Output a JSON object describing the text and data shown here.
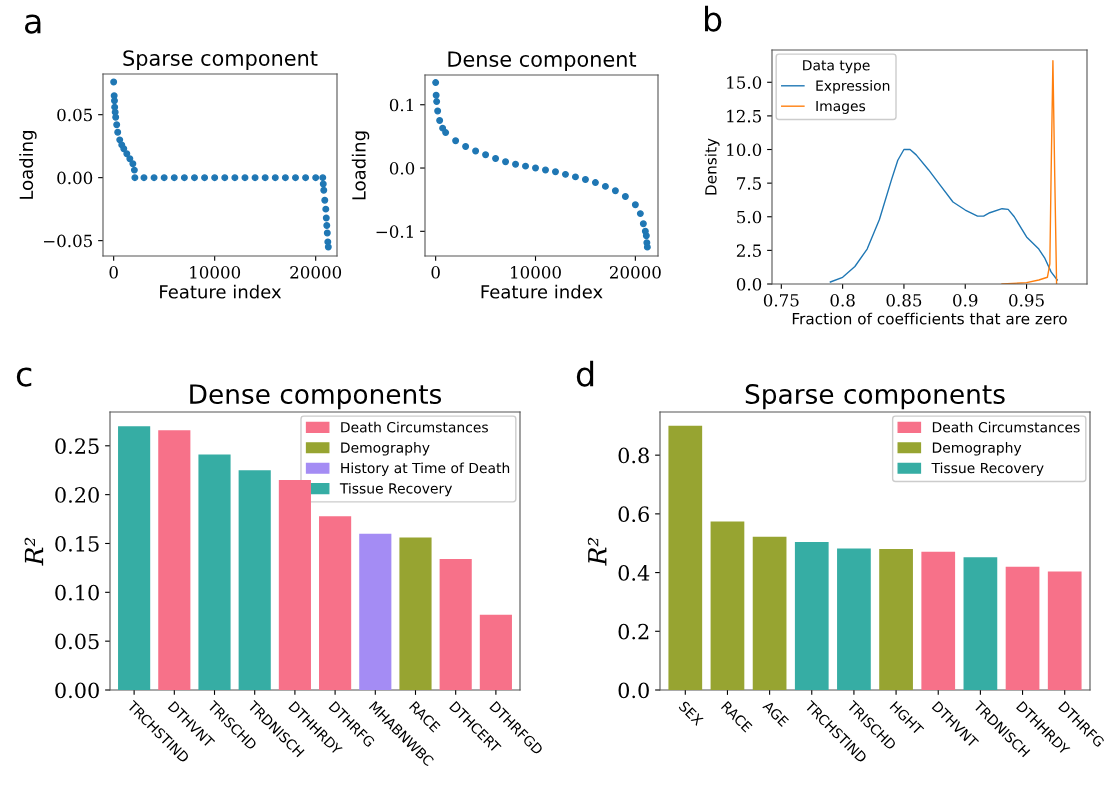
{
  "chart_data": [
    {
      "type": "scatter",
      "title": "Sparse component",
      "xlabel": "Feature index",
      "ylabel": "Loading",
      "annotations": [
        "a"
      ],
      "marker": "circle",
      "xlim": [
        -1056,
        22110
      ],
      "ylim": [
        -0.0622,
        0.0823
      ],
      "xticks": [
        0,
        10000,
        20000
      ],
      "yticks": [
        {
          "value": -0.05,
          "label": "−0.05"
        },
        {
          "value": 0,
          "label": "0.00"
        },
        {
          "value": 0.05,
          "label": "0.05"
        }
      ],
      "series": [
        {
          "color": "#1f77b4",
          "x": [
            0,
            50,
            80,
            100,
            150,
            200,
            300,
            400,
            600,
            800,
            1000,
            1300,
            1600,
            1900,
            2050,
            2100,
            3000,
            4000,
            5000,
            6000,
            7000,
            8000,
            9000,
            10000,
            11000,
            12000,
            13000,
            14000,
            15000,
            16000,
            17000,
            18000,
            19000,
            20000,
            20700,
            20750,
            20800,
            20900,
            21000,
            21050,
            21100,
            21150,
            21200,
            21250
          ],
          "values": [
            0.076,
            0.065,
            0.061,
            0.056,
            0.052,
            0.048,
            0.042,
            0.036,
            0.03,
            0.026,
            0.023,
            0.019,
            0.015,
            0.011,
            0.006,
            0.0,
            0.0,
            0.0,
            0.0,
            0.0,
            0.0,
            0.0,
            0.0,
            0.0,
            0.0,
            0.0,
            0.0,
            0.0,
            0.0,
            0.0,
            0.0,
            0.0,
            0.0,
            0.0,
            0.0,
            -0.005,
            -0.01,
            -0.018,
            -0.025,
            -0.032,
            -0.038,
            -0.044,
            -0.051,
            -0.055
          ]
        }
      ]
    },
    {
      "type": "scatter",
      "title": "Dense component",
      "xlabel": "Feature index",
      "ylabel": "Loading",
      "marker": "circle",
      "xlim": [
        -1067,
        22267
      ],
      "ylim": [
        -0.139,
        0.147
      ],
      "xticks": [
        0,
        10000,
        20000
      ],
      "yticks": [
        {
          "value": -0.1,
          "label": "−0.1"
        },
        {
          "value": 0,
          "label": "0.0"
        },
        {
          "value": 0.1,
          "label": "0.1"
        }
      ],
      "series": [
        {
          "color": "#1f77b4",
          "x": [
            0,
            50,
            100,
            200,
            400,
            700,
            1000,
            2000,
            3000,
            4000,
            5000,
            6000,
            7000,
            8000,
            9000,
            10000,
            11000,
            12000,
            13000,
            14000,
            15000,
            16000,
            17000,
            18000,
            19000,
            20000,
            20500,
            20800,
            21000,
            21100,
            21150,
            21200
          ],
          "values": [
            0.135,
            0.115,
            0.105,
            0.09,
            0.075,
            0.063,
            0.056,
            0.043,
            0.034,
            0.027,
            0.021,
            0.015,
            0.01,
            0.006,
            0.003,
            0.0,
            -0.003,
            -0.006,
            -0.01,
            -0.014,
            -0.018,
            -0.023,
            -0.029,
            -0.036,
            -0.045,
            -0.058,
            -0.072,
            -0.088,
            -0.1,
            -0.107,
            -0.118,
            -0.125
          ]
        }
      ]
    },
    {
      "type": "line",
      "xlabel": "Fraction of coefficients that are zero",
      "ylabel": "Density",
      "annotations": [
        "b"
      ],
      "legend_title": "Data type",
      "legend": "top left",
      "xlim": [
        0.7424,
        0.9993
      ],
      "ylim": [
        0,
        17.4
      ],
      "xticks": [
        0.75,
        0.8,
        0.85,
        0.9,
        0.95
      ],
      "yticks": [
        {
          "value": 0,
          "label": "0.0"
        },
        2.5,
        {
          "value": 5,
          "label": "5.0"
        },
        7.5,
        {
          "value": 10,
          "label": "10.0"
        },
        12.5,
        {
          "value": 15,
          "label": "15.0"
        }
      ],
      "series": [
        {
          "name": "Expression",
          "color": "#1f77b4",
          "x": [
            0.79,
            0.8,
            0.81,
            0.82,
            0.83,
            0.84,
            0.845,
            0.85,
            0.855,
            0.86,
            0.87,
            0.88,
            0.89,
            0.9,
            0.91,
            0.915,
            0.92,
            0.93,
            0.935,
            0.94,
            0.95,
            0.96,
            0.965,
            0.97,
            0.975
          ],
          "values": [
            0.15,
            0.5,
            1.3,
            2.6,
            4.8,
            7.8,
            9.2,
            10.0,
            10.0,
            9.6,
            8.5,
            7.3,
            6.1,
            5.5,
            5.05,
            5.05,
            5.3,
            5.6,
            5.55,
            5.0,
            3.5,
            2.6,
            1.9,
            0.9,
            0.3
          ]
        },
        {
          "name": "Images",
          "color": "#ff7f0e",
          "x": [
            0.93,
            0.95,
            0.96,
            0.967,
            0.969,
            0.97,
            0.9715,
            0.973,
            0.9745
          ],
          "values": [
            0,
            0.1,
            0.3,
            0.5,
            1.5,
            8,
            16.6,
            8,
            0
          ]
        }
      ]
    },
    {
      "type": "bar",
      "title": "Dense components",
      "ylabel": "R²",
      "annotations": [
        "c"
      ],
      "legend": "top right",
      "categories": [
        "TRCHSTIND",
        "DTHVNT",
        "TRISCHD",
        "TRDNISCH",
        "DTHHRDY",
        "DTHRFG",
        "MHABNWBC",
        "RACE",
        "DTHCERT",
        "DTHRFGD"
      ],
      "ylim": [
        0,
        0.2846
      ],
      "yticks": [
        {
          "value": 0,
          "label": "0.00"
        },
        0.05,
        {
          "value": 0.1,
          "label": "0.10"
        },
        0.15,
        {
          "value": 0.2,
          "label": "0.20"
        },
        0.25
      ],
      "series": [
        {
          "name": "Death Circumstances",
          "color": "#f77189",
          "values": [
            null,
            0.266,
            null,
            null,
            0.215,
            0.178,
            null,
            null,
            0.134,
            0.077
          ]
        },
        {
          "name": "Demography",
          "color": "#97a431",
          "values": [
            null,
            null,
            null,
            null,
            null,
            null,
            null,
            0.156,
            null,
            null
          ]
        },
        {
          "name": "History at Time of Death",
          "color": "#a48cf4",
          "values": [
            null,
            null,
            null,
            null,
            null,
            null,
            0.16,
            null,
            null,
            null
          ]
        },
        {
          "name": "Tissue Recovery",
          "color": "#36ada4",
          "values": [
            0.27,
            null,
            0.241,
            0.225,
            null,
            null,
            null,
            null,
            null,
            null
          ]
        }
      ]
    },
    {
      "type": "bar",
      "title": "Sparse components",
      "ylabel": "R²",
      "annotations": [
        "d"
      ],
      "legend": "top right",
      "categories": [
        "SEX",
        "RACE",
        "AGE",
        "TRCHSTIND",
        "TRISCHD",
        "HGHT",
        "DTHVNT",
        "TRDNISCH",
        "DTHHRDY",
        "DTHRFG"
      ],
      "ylim": [
        0,
        0.947
      ],
      "yticks": [
        {
          "value": 0,
          "label": "0.0"
        },
        0.2,
        0.4,
        0.6,
        0.8
      ],
      "series": [
        {
          "name": "Death Circumstances",
          "color": "#f77189",
          "values": [
            null,
            null,
            null,
            null,
            null,
            null,
            0.471,
            null,
            0.42,
            0.404
          ]
        },
        {
          "name": "Demography",
          "color": "#97a431",
          "values": [
            0.9,
            0.574,
            0.522,
            null,
            null,
            0.48,
            null,
            null,
            null,
            null
          ]
        },
        {
          "name": "Tissue Recovery",
          "color": "#36ada4",
          "values": [
            null,
            null,
            null,
            0.504,
            0.482,
            null,
            null,
            0.452,
            null,
            null
          ]
        }
      ]
    }
  ]
}
